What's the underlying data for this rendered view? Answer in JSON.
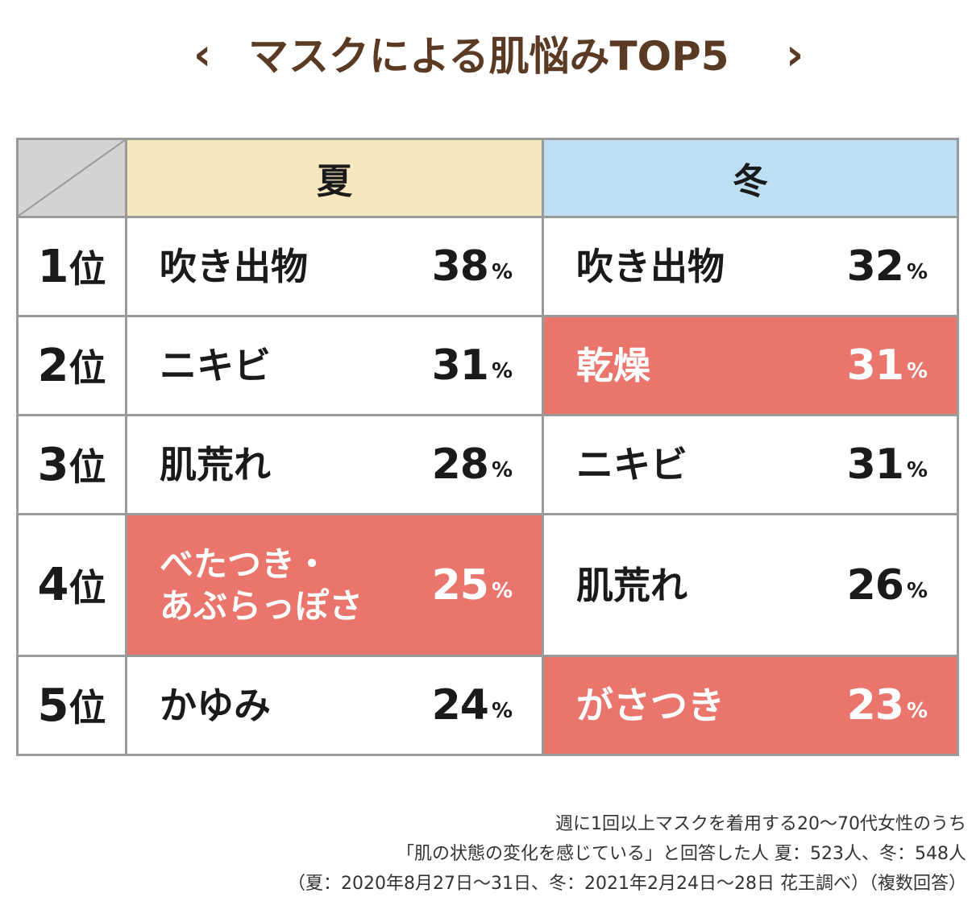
{
  "title": {
    "text": "マスクによる肌悩みTOP5",
    "prev_icon": "chevron-left-icon",
    "next_icon": "chevron-right-icon",
    "prev_glyph": "‹",
    "next_glyph": "›",
    "color": "#5a3a22",
    "underline_color": "#f6e6b9"
  },
  "table": {
    "headers": {
      "summer": "夏",
      "winter": "冬"
    },
    "rank_unit": "位",
    "percent_sign": "%",
    "highlight_color": "#e9756d",
    "rows": [
      {
        "rank": "1",
        "summer": {
          "label": "吹き出物",
          "value": "38",
          "highlight": false
        },
        "winter": {
          "label": "吹き出物",
          "value": "32",
          "highlight": false
        }
      },
      {
        "rank": "2",
        "summer": {
          "label": "ニキビ",
          "value": "31",
          "highlight": false
        },
        "winter": {
          "label": "乾燥",
          "value": "31",
          "highlight": true
        }
      },
      {
        "rank": "3",
        "summer": {
          "label": "肌荒れ",
          "value": "28",
          "highlight": false
        },
        "winter": {
          "label": "ニキビ",
          "value": "31",
          "highlight": false
        }
      },
      {
        "rank": "4",
        "summer": {
          "label": "べたつき・\nあぶらっぽさ",
          "label_line1": "べたつき・",
          "label_line2": "あぶらっぽさ",
          "value": "25",
          "highlight": true
        },
        "winter": {
          "label": "肌荒れ",
          "value": "26",
          "highlight": false
        }
      },
      {
        "rank": "5",
        "summer": {
          "label": "かゆみ",
          "value": "24",
          "highlight": false
        },
        "winter": {
          "label": "がさつき",
          "value": "23",
          "highlight": true
        }
      }
    ]
  },
  "notes": {
    "line1": "週に1回以上マスクを着用する20〜70代女性のうち",
    "line2": "「肌の状態の変化を感じている」と回答した人 夏：523人、冬：548人",
    "line3": "（夏：2020年8月27日〜31日、冬：2021年2月24日〜28日 花王調べ）（複数回答）"
  }
}
